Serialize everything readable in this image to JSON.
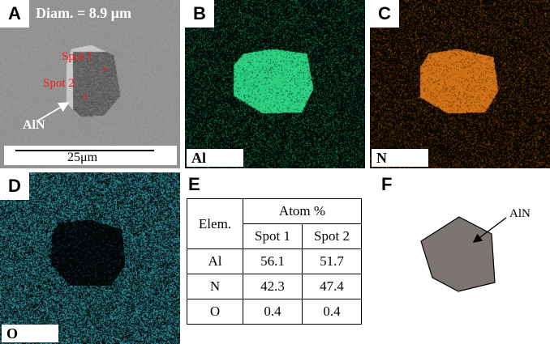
{
  "panels": {
    "a": {
      "label": "A",
      "diameter": "Diam. = 8.9 μm",
      "spot1": "Spot 1",
      "spot2": "Spot 2",
      "particle": "AlN",
      "scale": "25μm"
    },
    "b": {
      "label": "B",
      "element": "Al",
      "color": "#2fe08a"
    },
    "c": {
      "label": "C",
      "element": "N",
      "color": "#e07a1a"
    },
    "d": {
      "label": "D",
      "element": "O",
      "color": "#3fb6c4"
    },
    "e": {
      "label": "E"
    },
    "f": {
      "label": "F",
      "particle": "AlN"
    }
  },
  "table": {
    "elem_header": "Elem.",
    "group_header": "Atom %",
    "spot1_header": "Spot 1",
    "spot2_header": "Spot 2",
    "rows": [
      {
        "elem": "Al",
        "spot1": "56.1",
        "spot2": "51.7"
      },
      {
        "elem": "N",
        "spot1": "42.3",
        "spot2": "47.4"
      },
      {
        "elem": "O",
        "spot1": "0.4",
        "spot2": "0.4"
      }
    ]
  }
}
